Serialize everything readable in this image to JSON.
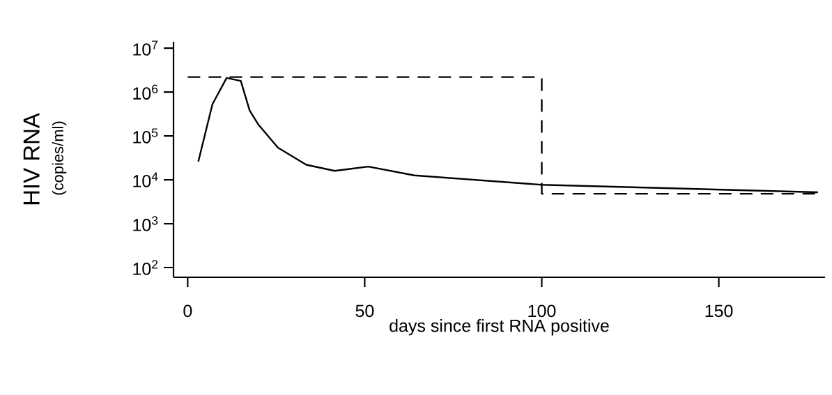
{
  "chart_data": {
    "type": "line",
    "xlabel": "days since first RNA positive",
    "ylabel": "HIV RNA",
    "annotations": [
      "(copies/ml)"
    ],
    "log": "y",
    "marker": "none",
    "xlim": [
      -4,
      180
    ],
    "ylim": [
      60,
      14000000
    ],
    "xticks": [
      0,
      50,
      100,
      150
    ],
    "yticks": [
      {
        "value": 100,
        "label": "10$^{2}$"
      },
      {
        "value": 1000,
        "label": "10$^{3}$"
      },
      {
        "value": 10000,
        "label": "10$^{4}$"
      },
      {
        "value": 100000,
        "label": "10$^{5}$"
      },
      {
        "value": 1000000,
        "label": "10$^{6}$"
      },
      {
        "value": 10000000,
        "label": "10$^{7}$"
      }
    ],
    "series": [
      {
        "color": "#000000",
        "line_style": "solid",
        "x": [
          3,
          7,
          11,
          15,
          17.5,
          20,
          25.5,
          33.5,
          41.5,
          51,
          64,
          100,
          178
        ],
        "values": [
          26000,
          530000,
          2100000,
          1800000,
          380000,
          180000,
          54000,
          22000,
          16000,
          20000,
          12600,
          7700,
          5200
        ]
      },
      {
        "color": "#000000",
        "line_style": "dashed",
        "x": [
          0,
          100,
          100,
          178
        ],
        "values": [
          2200000,
          2200000,
          4800,
          4800
        ]
      }
    ]
  }
}
